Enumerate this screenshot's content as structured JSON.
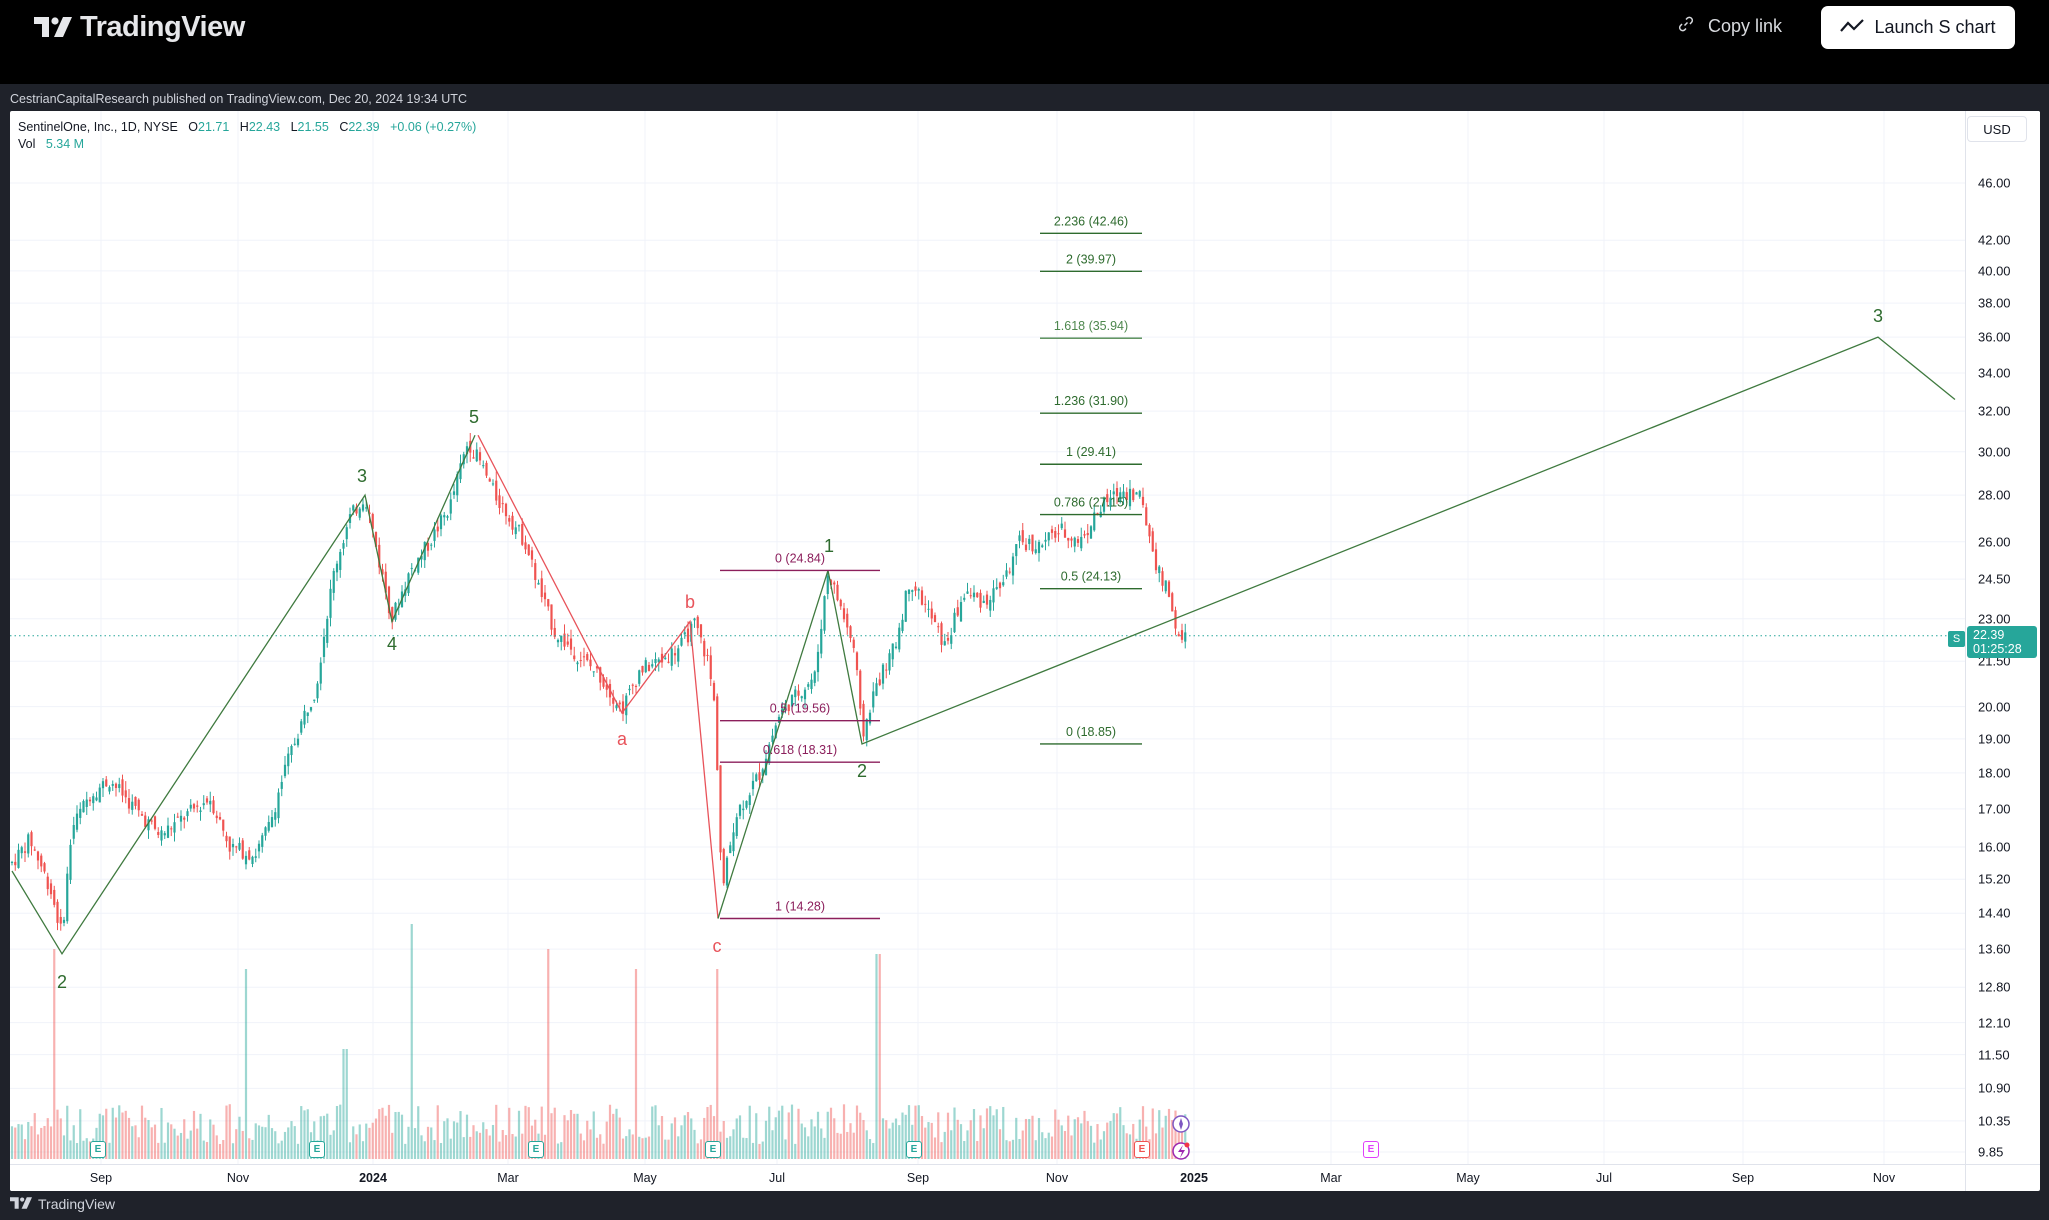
{
  "header": {
    "brand": "TradingView",
    "copy_link_label": "Copy link",
    "launch_button_label": "Launch S chart"
  },
  "published": "CestrianCapitalResearch published on TradingView.com, Dec 20, 2024 19:34 UTC",
  "legend": {
    "symbol": "SentinelOne, Inc., 1D, NYSE",
    "open_label": "O",
    "open": "21.71",
    "high_label": "H",
    "high": "22.43",
    "low_label": "L",
    "low": "21.55",
    "close_label": "C",
    "close": "22.39",
    "change": "+0.06 (+0.27%)",
    "vol_label": "Vol",
    "vol": "5.34 M"
  },
  "currency": "USD",
  "last_price": {
    "symbol_tag": "S",
    "price": "22.39",
    "countdown": "01:25:28"
  },
  "colors": {
    "up": "#26a69a",
    "down": "#ef5350",
    "wave_green": "#2e6b2e",
    "wave_red": "#e8535a",
    "fib_purple": "#8c1f5c"
  },
  "price_axis": [
    "46.00",
    "42.00",
    "40.00",
    "38.00",
    "36.00",
    "34.00",
    "32.00",
    "30.00",
    "28.00",
    "26.00",
    "24.50",
    "23.00",
    "21.50",
    "20.00",
    "19.00",
    "18.00",
    "17.00",
    "16.00",
    "15.20",
    "14.40",
    "13.60",
    "12.80",
    "12.10",
    "11.50",
    "10.90",
    "10.35",
    "9.85"
  ],
  "time_axis": [
    "Sep",
    "Nov",
    "2024",
    "Mar",
    "May",
    "Jul",
    "Sep",
    "Nov",
    "2025",
    "Mar",
    "May",
    "Jul",
    "Sep",
    "Nov"
  ],
  "footer_brand": "TradingView",
  "chart_data": {
    "type": "candlestick",
    "title": "SentinelOne, Inc. (S), 1D, NYSE",
    "xlabel": "",
    "ylabel": "USD",
    "scale": "log",
    "ylim": [
      9.85,
      46.0
    ],
    "x_range": [
      "Aug 2023",
      "Dec 2025"
    ],
    "last": {
      "open": 21.71,
      "high": 22.43,
      "low": 21.55,
      "close": 22.39,
      "change": 0.06,
      "change_pct": 0.27,
      "volume_m": 5.34
    },
    "elliott_waves": {
      "primary_green": [
        {
          "label": "2",
          "date": "Aug 2023",
          "price": 13.5
        },
        {
          "label": "3",
          "date": "Dec 2023",
          "price": 28.0
        },
        {
          "label": "4",
          "date": "Jan 2024",
          "price": 22.9
        },
        {
          "label": "5",
          "date": "Feb 2024",
          "price": 30.8
        },
        {
          "label": "1",
          "date": "Jul 2024",
          "price": 24.84
        },
        {
          "label": "2",
          "date": "Aug 2024",
          "price": 18.85
        },
        {
          "label": "3",
          "date": "Oct 2025",
          "price": 36.0
        }
      ],
      "correction_red": [
        {
          "label": "a",
          "date": "Apr 2024",
          "price": 19.8
        },
        {
          "label": "b",
          "date": "May 2024",
          "price": 22.9
        },
        {
          "label": "c",
          "date": "Jun 2024",
          "price": 14.28
        }
      ]
    },
    "fib_retracement": [
      {
        "level": "0",
        "price": 24.84
      },
      {
        "level": "0.5",
        "price": 19.56
      },
      {
        "level": "0.618",
        "price": 18.31
      },
      {
        "level": "1",
        "price": 14.28
      }
    ],
    "fib_extension": [
      {
        "level": "2.236",
        "price": 42.46
      },
      {
        "level": "2",
        "price": 39.97
      },
      {
        "level": "1.618",
        "price": 35.94
      },
      {
        "level": "1.236",
        "price": 31.9
      },
      {
        "level": "1",
        "price": 29.41
      },
      {
        "level": "0.786",
        "price": 27.15
      },
      {
        "level": "0.5",
        "price": 24.13
      },
      {
        "level": "0",
        "price": 18.85
      }
    ],
    "earnings_markers": [
      "Aug 2023",
      "Dec 2023",
      "Mar 2024",
      "May 2024",
      "Aug 2024",
      "Dec 2024",
      "Mar 2025"
    ]
  },
  "fib_labels": {
    "ret_0": "0 (24.84)",
    "ret_05": "0.5 (19.56)",
    "ret_0618": "0.618 (18.31)",
    "ret_1": "1 (14.28)",
    "ext_2236": "2.236 (42.46)",
    "ext_2": "2 (39.97)",
    "ext_1618": "1.618 (35.94)",
    "ext_1236": "1.236 (31.90)",
    "ext_1": "1 (29.41)",
    "ext_0786": "0.786 (27.15)",
    "ext_05": "0.5 (24.13)",
    "ext_0": "0 (18.85)"
  },
  "wave_labels": {
    "g2a": "2",
    "g3a": "3",
    "g4": "4",
    "g5": "5",
    "r_a": "a",
    "r_b": "b",
    "r_c": "c",
    "g1": "1",
    "g2b": "2",
    "g3b": "3"
  },
  "earnings_label": "E"
}
